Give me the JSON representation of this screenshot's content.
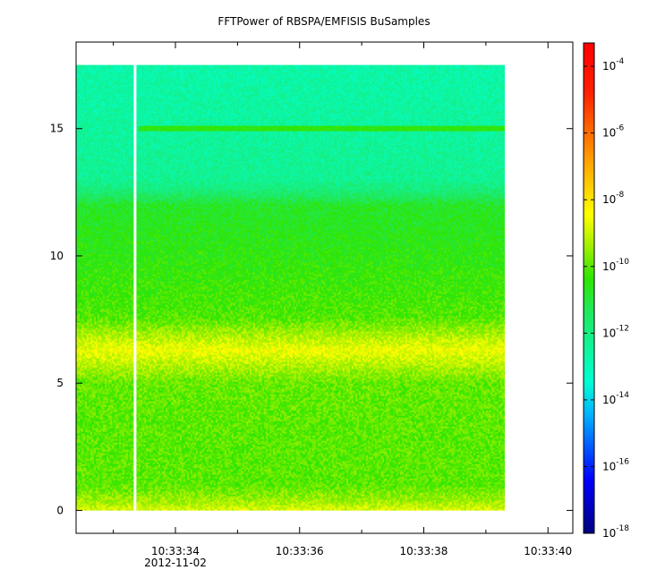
{
  "chart_data": {
    "type": "heatmap",
    "title": "FFTPower of RBSPA/EMFISIS  BuSamples",
    "xlabel": "",
    "ylabel": "",
    "x_ticks": [
      {
        "value": 34,
        "label": "10:33:34"
      },
      {
        "value": 36,
        "label": "10:33:36"
      },
      {
        "value": 38,
        "label": "10:33:38"
      },
      {
        "value": 40,
        "label": "10:33:40"
      }
    ],
    "x_minor_ticks": [
      33,
      35,
      37,
      39
    ],
    "x_date_label": "2012-11-02",
    "xlim": [
      32.4,
      40.4
    ],
    "data_x_range": [
      32.4,
      39.3
    ],
    "gap_at_x": 33.35,
    "y_ticks": [
      0,
      5,
      10,
      15
    ],
    "ylim": [
      -0.9,
      18.4
    ],
    "data_y_range": [
      0,
      17.5
    ],
    "z_scale": "log",
    "zlim_exp": [
      -18,
      -3.3
    ],
    "colorbar_ticks": [
      {
        "base": "10",
        "exp": "-18"
      },
      {
        "base": "10",
        "exp": "-16"
      },
      {
        "base": "10",
        "exp": "-14"
      },
      {
        "base": "10",
        "exp": "-12"
      },
      {
        "base": "10",
        "exp": "-10"
      },
      {
        "base": "10",
        "exp": "-8"
      },
      {
        "base": "10",
        "exp": "-6"
      },
      {
        "base": "10",
        "exp": "-4"
      }
    ],
    "power_profile_log10": [
      {
        "y": 0.0,
        "v": -8.8
      },
      {
        "y": 0.3,
        "v": -9.3
      },
      {
        "y": 1.0,
        "v": -10.0
      },
      {
        "y": 3.0,
        "v": -10.0
      },
      {
        "y": 5.0,
        "v": -9.9
      },
      {
        "y": 5.6,
        "v": -9.3
      },
      {
        "y": 6.3,
        "v": -8.6
      },
      {
        "y": 7.0,
        "v": -9.4
      },
      {
        "y": 7.6,
        "v": -10.1
      },
      {
        "y": 10.0,
        "v": -10.5
      },
      {
        "y": 12.0,
        "v": -10.8
      },
      {
        "y": 12.4,
        "v": -11.6
      },
      {
        "y": 13.0,
        "v": -12.3
      },
      {
        "y": 15.0,
        "v": -12.5
      },
      {
        "y": 17.5,
        "v": -12.7
      }
    ],
    "narrowband_line": {
      "y": 15.0,
      "log10_power": -10.5
    }
  }
}
